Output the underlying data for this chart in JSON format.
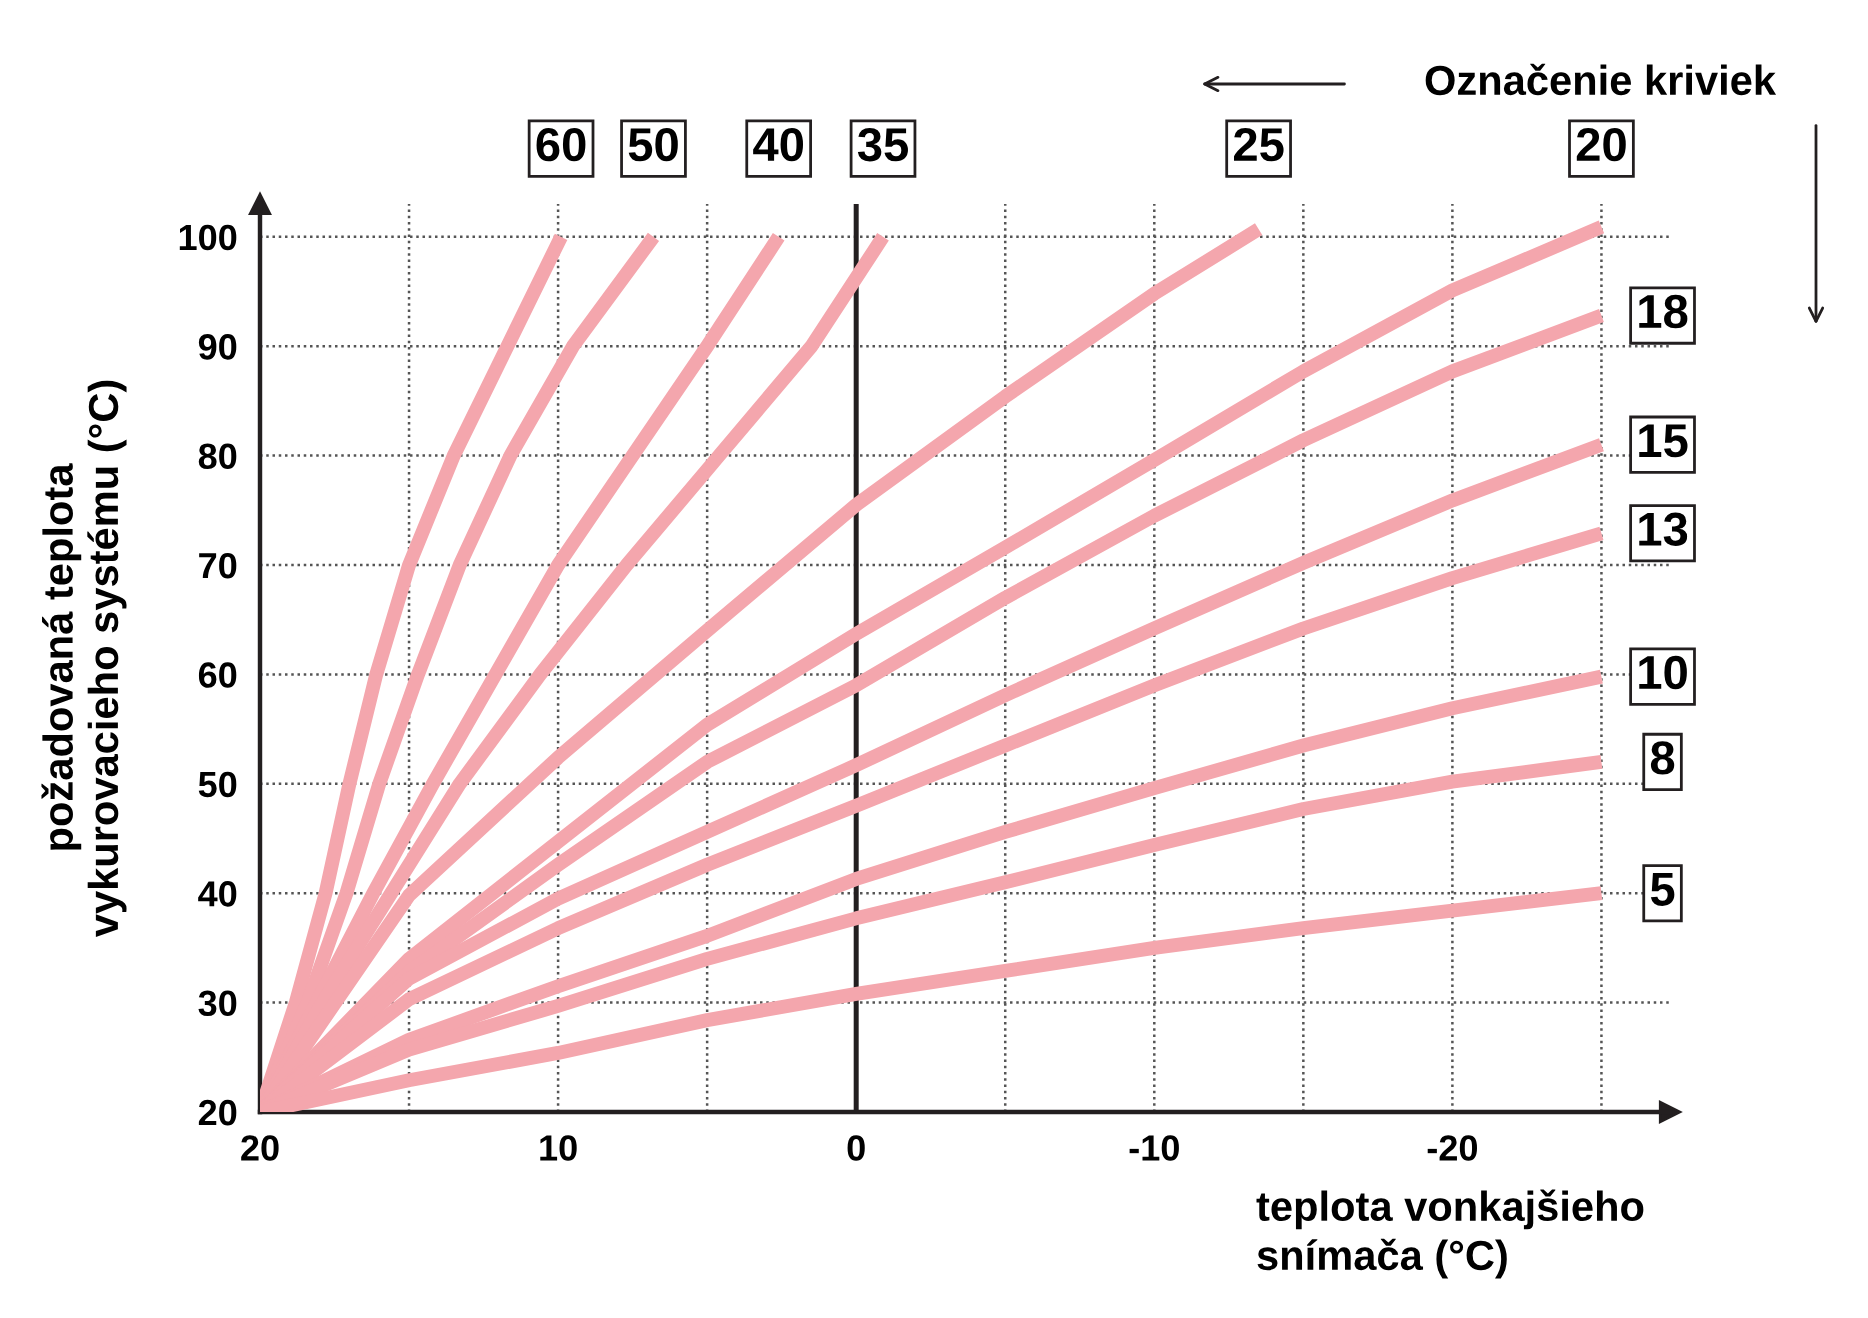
{
  "chart_data": {
    "type": "line",
    "title": "Označenie kriviek",
    "xlabel": "teplota vonkajšieho\nsnímača (°C)",
    "ylabel": "požadovaná teplota\nvykurovacieho systému (°C)",
    "xlim": [
      20,
      -27.3
    ],
    "ylim": [
      20,
      103
    ],
    "xticks": [
      20,
      {
        "value": 15,
        "label": null
      },
      10,
      {
        "value": 5,
        "label": null
      },
      0,
      {
        "value": -5,
        "label": null
      },
      {
        "value": -10,
        "label": "-10"
      },
      {
        "value": -15,
        "label": null
      },
      {
        "value": -20,
        "label": "-20"
      },
      {
        "value": -25,
        "label": null
      }
    ],
    "yticks": [
      20,
      30,
      40,
      50,
      60,
      70,
      80,
      90,
      100
    ],
    "grid": true,
    "legend": false,
    "marker": "none",
    "line_style": "solid",
    "ref_lines": [
      {
        "axis": "x",
        "value": 0,
        "color": "#231f20",
        "line_style": "solid"
      }
    ],
    "series": [
      {
        "name": "60",
        "color": "#f4a6ad",
        "x": [
          20,
          18.8,
          17.8,
          17,
          16.1,
          15,
          13.5,
          11.7,
          9.9
        ],
        "values": [
          20,
          30,
          40,
          50,
          60,
          70,
          80,
          90,
          100
        ]
      },
      {
        "name": "50",
        "color": "#f4a6ad",
        "x": [
          20,
          18.4,
          17.1,
          16,
          14.7,
          13.3,
          11.6,
          9.5,
          6.8
        ],
        "values": [
          20,
          30,
          40,
          50,
          60,
          70,
          80,
          90,
          100
        ]
      },
      {
        "name": "40",
        "color": "#f4a6ad",
        "x": [
          20,
          18.1,
          16.2,
          14.2,
          12.1,
          10,
          7.5,
          5,
          2.6
        ],
        "values": [
          20,
          30,
          40,
          50,
          60,
          70,
          80,
          90,
          100
        ]
      },
      {
        "name": "35",
        "color": "#f4a6ad",
        "x": [
          20,
          17.9,
          15.6,
          13.3,
          10.6,
          7.7,
          4.6,
          1.5,
          -0.9
        ],
        "values": [
          20,
          30,
          40,
          50,
          60,
          70,
          80,
          90,
          100
        ]
      },
      {
        "name": "25",
        "color": "#f4a6ad",
        "x": [
          20,
          15,
          10,
          5,
          0,
          -5,
          -10,
          -13.5
        ],
        "values": [
          20,
          39.8,
          52.4,
          64,
          75.5,
          85.4,
          94.8,
          100.7
        ]
      },
      {
        "name": "20",
        "color": "#f4a6ad",
        "x": [
          20,
          15,
          10,
          5,
          0,
          -5,
          -10,
          -15,
          -20,
          -25
        ],
        "values": [
          20,
          34,
          44.7,
          55.4,
          63.7,
          71.6,
          79.6,
          87.7,
          95.1,
          100.9
        ]
      },
      {
        "name": "18",
        "color": "#f4a6ad",
        "x": [
          20,
          15,
          10,
          5,
          0,
          -5,
          -10,
          -15,
          -20,
          -25
        ],
        "values": [
          20,
          32.8,
          42.6,
          52,
          59,
          67,
          74.5,
          81.4,
          87.7,
          92.8
        ]
      },
      {
        "name": "15",
        "color": "#f4a6ad",
        "x": [
          20,
          15,
          10,
          5,
          0,
          -5,
          -10,
          -15,
          -20,
          -25
        ],
        "values": [
          20,
          32.2,
          39.5,
          45.6,
          51.7,
          58.1,
          64.2,
          70.2,
          75.9,
          81
        ]
      },
      {
        "name": "13",
        "color": "#f4a6ad",
        "x": [
          20,
          15,
          10,
          5,
          0,
          -5,
          -10,
          -15,
          -20,
          -25
        ],
        "values": [
          20,
          30.3,
          36.8,
          42.6,
          48,
          53.5,
          59,
          64.2,
          68.8,
          72.9
        ]
      },
      {
        "name": "10",
        "color": "#f4a6ad",
        "x": [
          20,
          15,
          10,
          5,
          0,
          -5,
          -10,
          -15,
          -20,
          -25
        ],
        "values": [
          20,
          26.6,
          31.5,
          36.1,
          41.3,
          45.6,
          49.6,
          53.5,
          56.9,
          59.8
        ]
      },
      {
        "name": "8",
        "color": "#f4a6ad",
        "x": [
          20,
          15,
          10,
          5,
          0,
          -5,
          -10,
          -15,
          -20,
          -25
        ],
        "values": [
          20,
          25.7,
          29.7,
          34,
          37.7,
          41,
          44.4,
          47.7,
          50.2,
          52
        ]
      },
      {
        "name": "5",
        "color": "#f4a6ad",
        "x": [
          20,
          15,
          10,
          5,
          0,
          -5,
          -10,
          -15,
          -20,
          -25
        ],
        "values": [
          20,
          22.9,
          25.4,
          28.4,
          30.8,
          32.9,
          35,
          36.8,
          38.4,
          40
        ]
      }
    ]
  }
}
